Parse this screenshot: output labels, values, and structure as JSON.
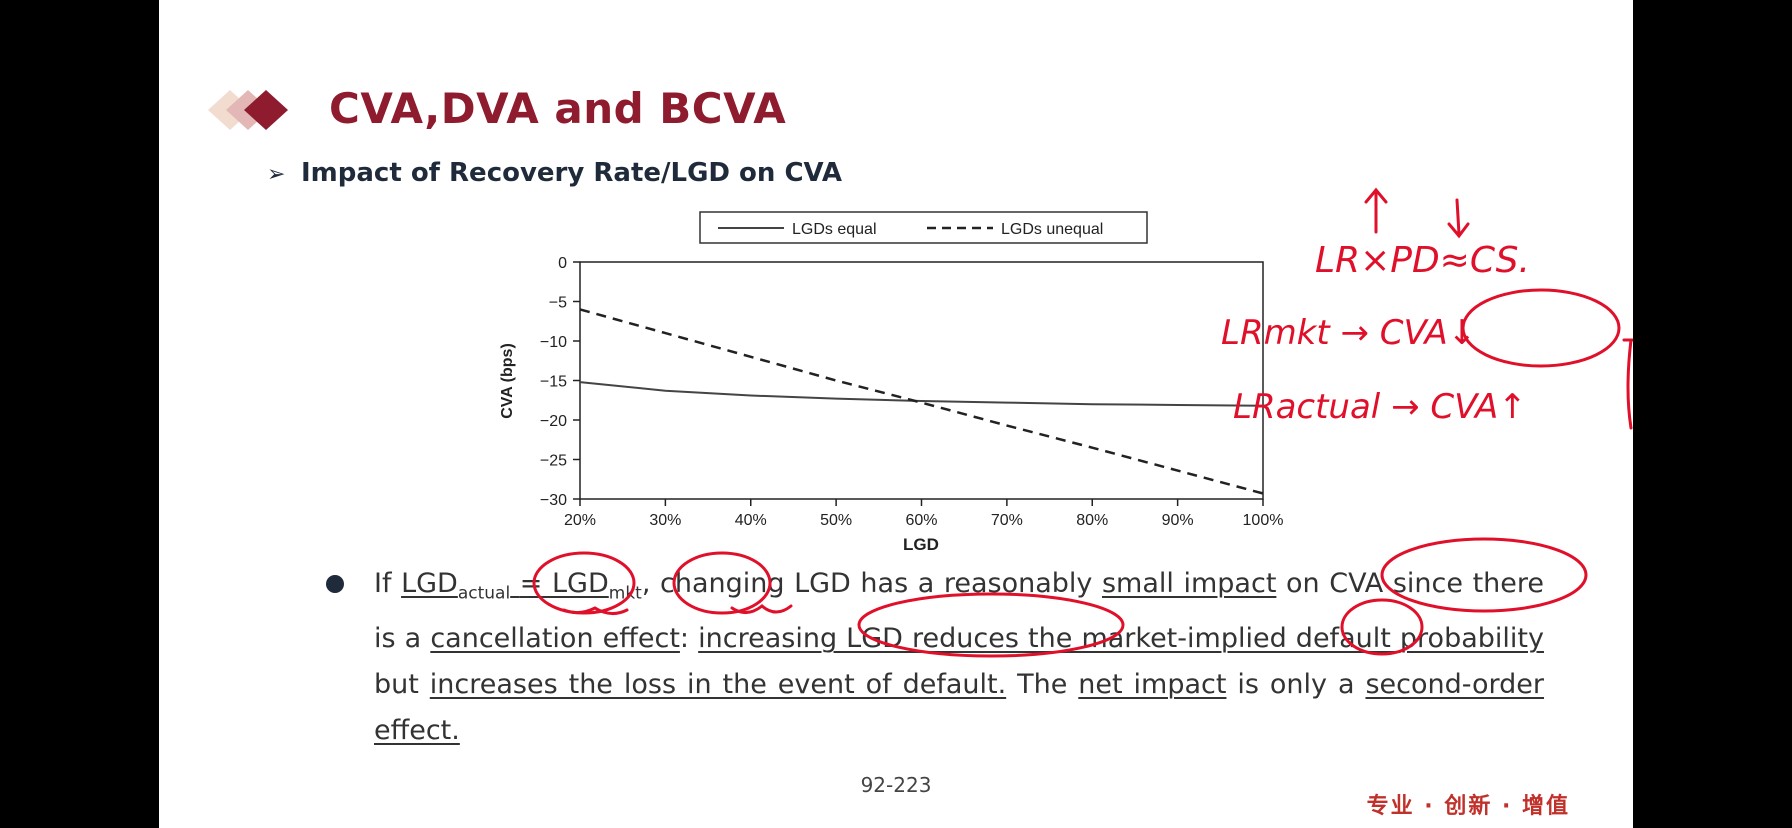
{
  "slide": {
    "title": "CVA,DVA and BCVA",
    "subtitle": "Impact of Recovery Rate/LGD on CVA",
    "page_number": "92-223",
    "slogan": "专业 · 创新 · 增值"
  },
  "bullet": {
    "if": "If",
    "lgd1_main": "LGD",
    "lgd1_sub": "actual",
    "eq": "=",
    "lgd2_main": "LGD",
    "lgd2_sub": "mkt",
    "p1": ", changing LGD has a reasonably",
    "u1": "small impact",
    "p2": "on CVA since there is a",
    "u2": "cancellation effect",
    "p3": ":",
    "u3": "increasing LGD reduces the market-implied default probability",
    "p4": "but",
    "u4": "increases the loss in the event of default.",
    "p5": "The",
    "u5": "net impact",
    "p6": "is only a",
    "u6": "second-order effect."
  },
  "chart_data": {
    "type": "line",
    "xlabel": "LGD",
    "ylabel": "CVA (bps)",
    "x": [
      20,
      30,
      40,
      50,
      60,
      70,
      80,
      90,
      100
    ],
    "x_tick_labels": [
      "20%",
      "30%",
      "40%",
      "50%",
      "60%",
      "70%",
      "80%",
      "90%",
      "100%"
    ],
    "y_ticks": [
      0,
      -5,
      -10,
      -15,
      -20,
      -25,
      -30
    ],
    "y_tick_labels": [
      "0",
      "−5",
      "−10",
      "−15",
      "−20",
      "−25",
      "−30"
    ],
    "xlim": [
      20,
      100
    ],
    "ylim": [
      -30,
      0
    ],
    "legend_position": "top",
    "series": [
      {
        "name": "LGDs equal",
        "style": "solid",
        "values": [
          -15.2,
          -16.3,
          -16.9,
          -17.3,
          -17.6,
          -17.8,
          -18.0,
          -18.1,
          -18.2
        ]
      },
      {
        "name": "LGDs unequal",
        "style": "dashed",
        "values": [
          -6.0,
          -9.0,
          -12.0,
          -15.0,
          -17.8,
          -20.7,
          -23.5,
          -26.4,
          -29.3
        ]
      }
    ]
  },
  "annotations": {
    "line1": "LR×PD≈CS.",
    "line2": "LRmkt → CVA↓",
    "line3": "LRactual → CVA↑",
    "color": "#e0102a"
  }
}
